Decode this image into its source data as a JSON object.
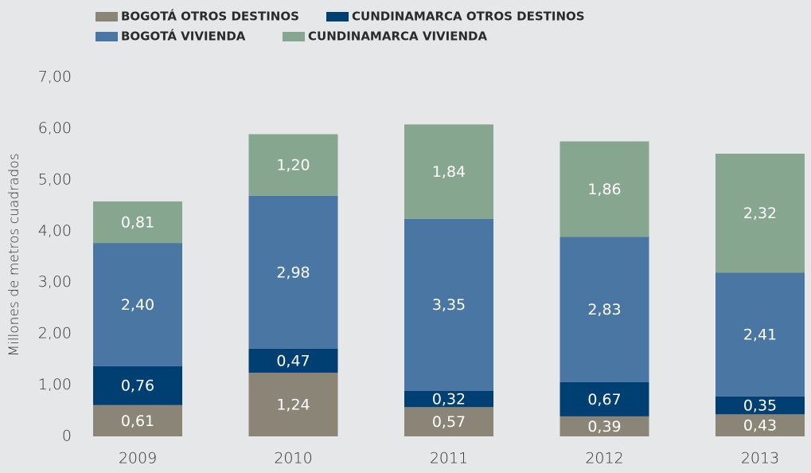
{
  "chart_data": {
    "type": "stacked_bar",
    "y_label": "Millones de metros cuadrados",
    "categories": [
      "2009",
      "2010",
      "2011",
      "2012",
      "2013"
    ],
    "series": [
      {
        "name": "BOGOTÁ OTROS DESTINOS",
        "color": "#8b8577",
        "values": [
          0.61,
          1.24,
          0.57,
          0.39,
          0.43
        ],
        "value_labels": [
          "0,61",
          "1,24",
          "0,57",
          "0,39",
          "0,43"
        ]
      },
      {
        "name": "CUNDINAMARCA OTROS DESTINOS",
        "color": "#003f72",
        "values": [
          0.76,
          0.47,
          0.32,
          0.67,
          0.35
        ],
        "value_labels": [
          "0,76",
          "0,47",
          "0,32",
          "0,67",
          "0,35"
        ]
      },
      {
        "name": "BOGOTÁ VIVIENDA",
        "color": "#4a76a3",
        "values": [
          2.4,
          2.98,
          3.35,
          2.83,
          2.41
        ],
        "value_labels": [
          "2,40",
          "2,98",
          "3,35",
          "2,83",
          "2,41"
        ]
      },
      {
        "name": "CUNDINAMARCA VIVIENDA",
        "color": "#87a68f",
        "values": [
          0.81,
          1.2,
          1.84,
          1.86,
          2.32
        ],
        "value_labels": [
          "0,81",
          "1,20",
          "1,84",
          "1,86",
          "2,32"
        ]
      }
    ],
    "ylim": [
      0,
      7
    ],
    "yticks": [
      0,
      {
        "value": 1,
        "label": "1,00"
      },
      {
        "value": 2,
        "label": "2,00"
      },
      {
        "value": 3,
        "label": "3,00"
      },
      {
        "value": 4,
        "label": "4,00"
      },
      {
        "value": 5,
        "label": "5,00"
      },
      {
        "value": 6,
        "label": "6,00"
      },
      {
        "value": 7,
        "label": "7,00"
      }
    ],
    "legend": "top"
  }
}
